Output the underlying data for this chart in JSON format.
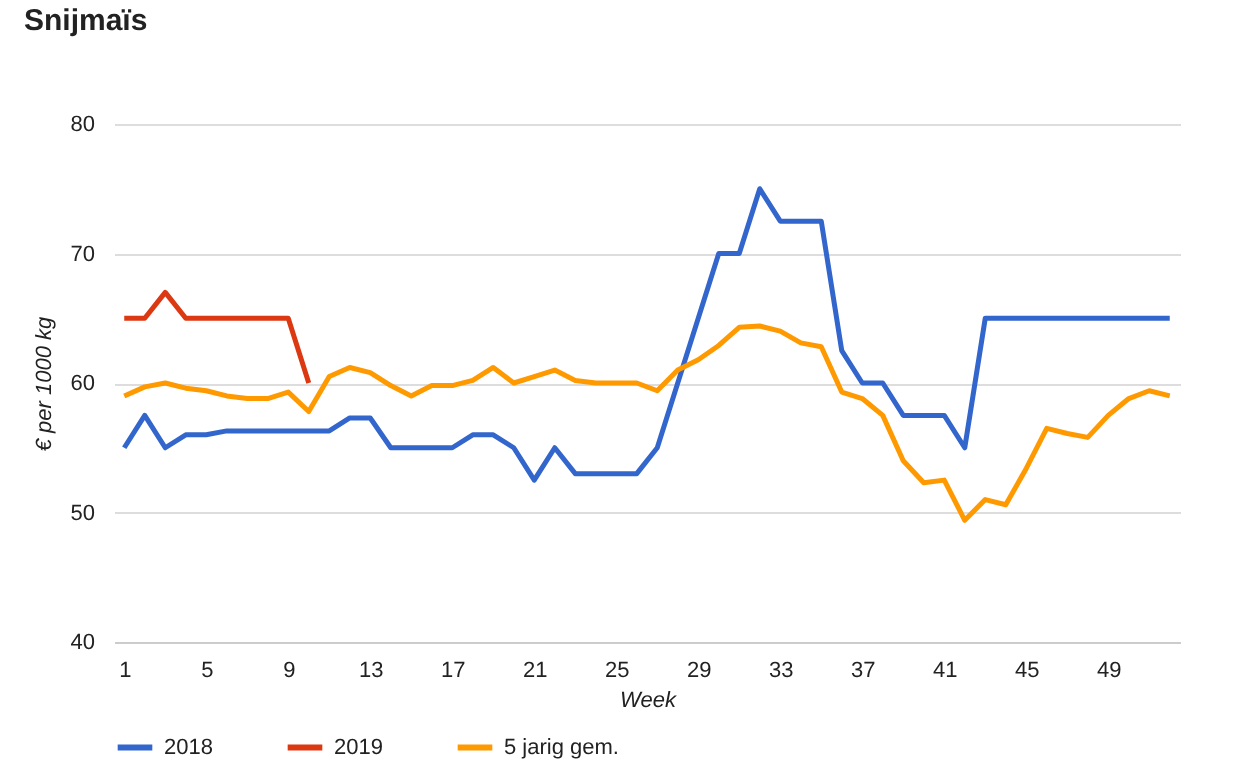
{
  "chart_data": {
    "type": "line",
    "title": "Snijmaïs",
    "xlabel": "Week",
    "ylabel": "€ per 1000 kg",
    "x": [
      1,
      2,
      3,
      4,
      5,
      6,
      7,
      8,
      9,
      10,
      11,
      12,
      13,
      14,
      15,
      16,
      17,
      18,
      19,
      20,
      21,
      22,
      23,
      24,
      25,
      26,
      27,
      28,
      29,
      30,
      31,
      32,
      33,
      34,
      35,
      36,
      37,
      38,
      39,
      40,
      41,
      42,
      43,
      44,
      45,
      46,
      47,
      48,
      49,
      50,
      51,
      52
    ],
    "series": [
      {
        "name": "2018",
        "color": "#3366cc",
        "values": [
          55,
          57.5,
          55,
          56,
          56,
          56.3,
          56.3,
          56.3,
          56.3,
          56.3,
          56.3,
          57.3,
          57.3,
          55,
          55,
          55,
          55,
          56,
          56,
          55,
          52.5,
          55,
          53,
          53,
          53,
          53,
          55,
          60,
          65,
          70,
          70,
          75,
          72.5,
          72.5,
          72.5,
          62.5,
          60,
          60,
          57.5,
          57.5,
          57.5,
          55,
          65,
          65,
          65,
          65,
          65,
          65,
          65,
          65,
          65,
          65
        ]
      },
      {
        "name": "2019",
        "color": "#dc3912",
        "values": [
          65,
          65,
          67,
          65,
          65,
          65,
          65,
          65,
          65,
          60,
          null,
          null,
          null,
          null,
          null,
          null,
          null,
          null,
          null,
          null,
          null,
          null,
          null,
          null,
          null,
          null,
          null,
          null,
          null,
          null,
          null,
          null,
          null,
          null,
          null,
          null,
          null,
          null,
          null,
          null,
          null,
          null,
          null,
          null,
          null,
          null,
          null,
          null,
          null,
          null,
          null,
          null
        ]
      },
      {
        "name": "5 jarig gem.",
        "color": "#ff9900",
        "values": [
          59,
          59.7,
          60,
          59.6,
          59.4,
          59,
          58.8,
          58.8,
          59.3,
          57.8,
          60.5,
          61.2,
          60.8,
          59.8,
          59,
          59.8,
          59.8,
          60.2,
          61.2,
          60,
          60.5,
          61,
          60.2,
          60,
          60,
          60,
          59.4,
          61,
          61.8,
          62.9,
          64.3,
          64.4,
          64,
          63.1,
          62.8,
          59.3,
          58.8,
          57.5,
          54,
          52.3,
          52.5,
          49.4,
          51,
          50.6,
          53.4,
          56.5,
          56.1,
          55.8,
          57.5,
          58.8,
          59.4,
          59
        ]
      }
    ],
    "xlim": [
      0.5,
      52.5
    ],
    "xticks": [
      1,
      5,
      9,
      13,
      17,
      21,
      25,
      29,
      33,
      37,
      41,
      45,
      49
    ],
    "ylim": [
      40,
      80
    ],
    "yticks": [
      40,
      50,
      60,
      70,
      80
    ],
    "grid": "y",
    "legend": "bottom"
  }
}
